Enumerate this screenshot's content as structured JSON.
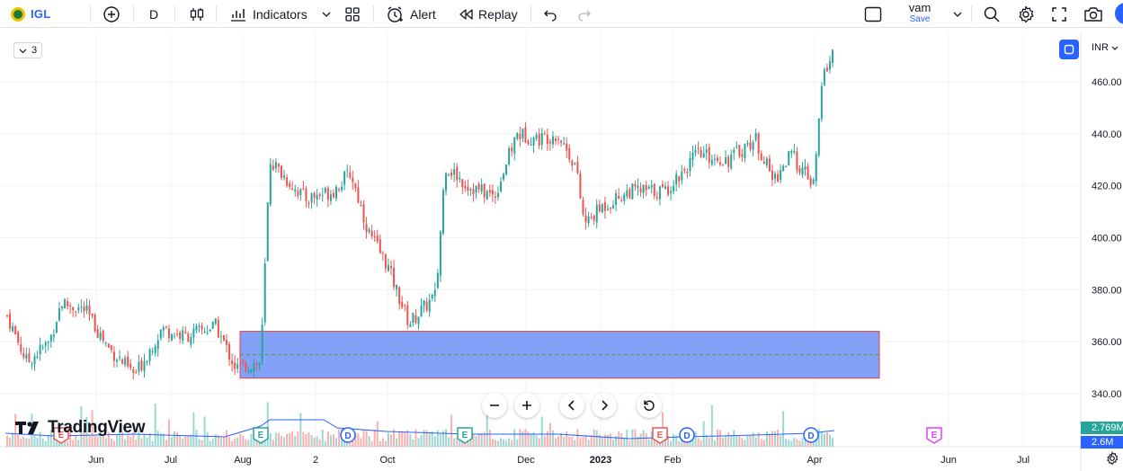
{
  "toolbar": {
    "symbol": "IGL",
    "interval": "D",
    "indicators_label": "Indicators",
    "alert_label": "Alert",
    "replay_label": "Replay",
    "layout_name": "vam",
    "layout_save": "Save"
  },
  "chart": {
    "legend_count": "3",
    "currency": "INR",
    "price_ticks": [
      "460.00",
      "440.00",
      "420.00",
      "400.00",
      "380.00",
      "360.00",
      "340.00"
    ],
    "time_ticks": [
      "Jun",
      "Jul",
      "Aug",
      "2",
      "Oct",
      "Dec",
      "2023",
      "Feb",
      "Apr",
      "Jun",
      "Jul"
    ],
    "volume_tags": [
      "2.769M",
      "2.6M"
    ],
    "event_markers": [
      "E",
      "D",
      "E",
      "E",
      "D",
      "D",
      "E"
    ],
    "branding": "TradingView",
    "colors": {
      "up": "#26a69a",
      "down": "#ef5350",
      "zone_fill": "#5b82f5",
      "zone_border": "#e04040",
      "volume_ma": "#2962ff",
      "accent": "#2962ff"
    }
  },
  "chart_data": {
    "type": "candlestick",
    "symbol": "IGL",
    "interval": "D",
    "y_axis_label": "INR",
    "y_range": [
      335,
      475
    ],
    "x_axis_labels": [
      "Jun",
      "Jul",
      "Aug",
      "2",
      "Oct",
      "Dec",
      "2023",
      "Feb",
      "Apr",
      "Jun",
      "Jul"
    ],
    "approx_close_path": [
      {
        "x": "May",
        "value": 370
      },
      {
        "x": "Jun",
        "value": 365
      },
      {
        "x": "Jul",
        "value": 360
      },
      {
        "x": "Aug",
        "value": 350
      },
      {
        "x": "Aug",
        "value": 430
      },
      {
        "x": "Sep",
        "value": 415
      },
      {
        "x": "Oct",
        "value": 375
      },
      {
        "x": "Nov",
        "value": 428
      },
      {
        "x": "Dec",
        "value": 438
      },
      {
        "x": "Jan",
        "value": 405
      },
      {
        "x": "2023",
        "value": 420
      },
      {
        "x": "Feb",
        "value": 432
      },
      {
        "x": "Mar",
        "value": 425
      },
      {
        "x": "Apr",
        "value": 470
      }
    ],
    "zone": {
      "top": 364,
      "bottom": 346,
      "dashed_mid": 355
    },
    "grid": true
  }
}
